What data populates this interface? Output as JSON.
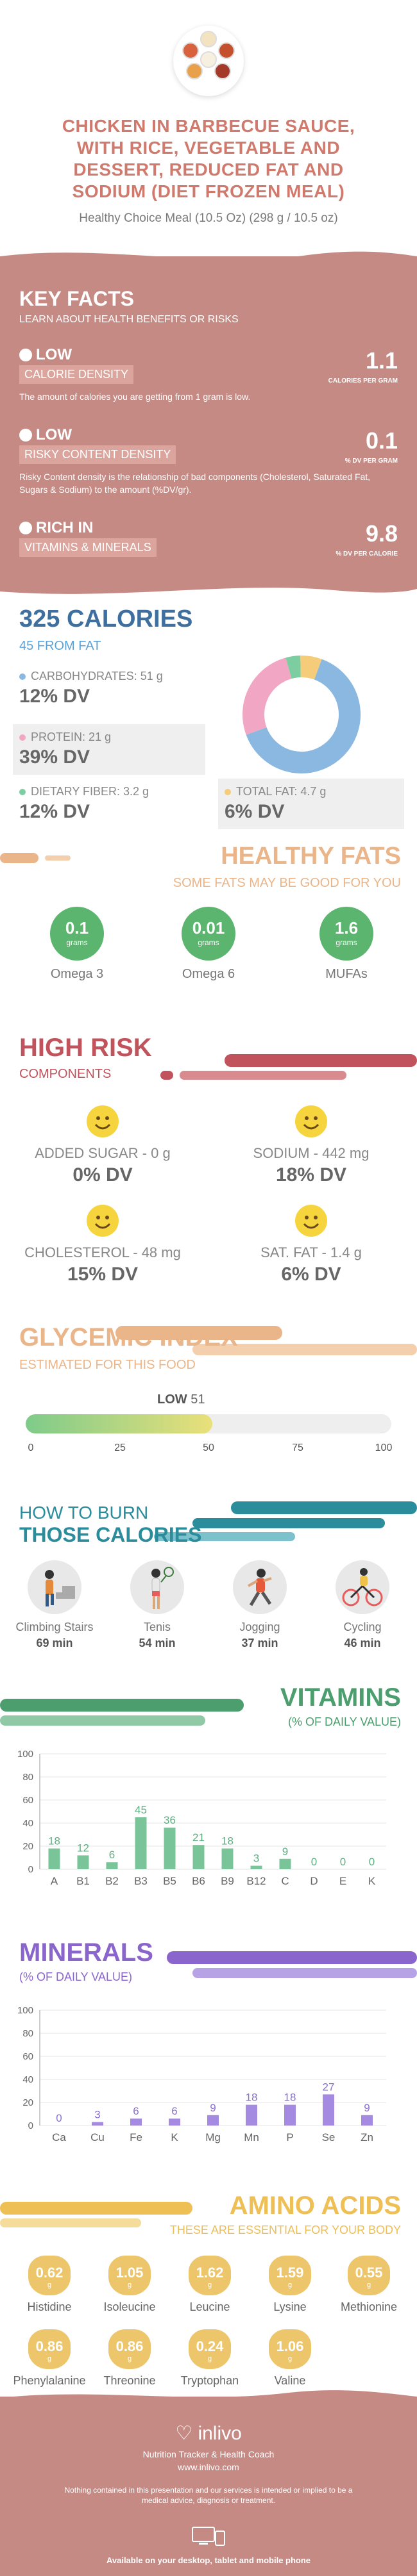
{
  "header": {
    "title": "CHICKEN IN BARBECUE SAUCE, WITH RICE, VEGETABLE AND DESSERT, REDUCED FAT AND SODIUM (DIET FROZEN MEAL)",
    "subtitle": "Healthy Choice Meal (10.5 Oz) (298 g / 10.5 oz)",
    "image_icon": "bowls-of-food-icon"
  },
  "key_facts": {
    "title": "KEY FACTS",
    "subtitle": "LEARN ABOUT HEALTH BENEFITS OR RISKS",
    "items": [
      {
        "level": "LOW",
        "tag": "CALORIE DENSITY",
        "desc": "The amount of calories you are getting from 1 gram is low.",
        "value": "1.1",
        "unit": "CALORIES PER GRAM",
        "icon": "thumbs-down-icon"
      },
      {
        "level": "LOW",
        "tag": "RISKY CONTENT DENSITY",
        "desc": "Risky Content density is the relationship of bad components (Cholesterol, Saturated Fat, Sugars & Sodium) to the amount (%DV/gr).",
        "value": "0.1",
        "unit": "% DV PER GRAM",
        "icon": "warning-icon"
      },
      {
        "level": "RICH IN",
        "tag": "VITAMINS & MINERALS",
        "desc": "",
        "value": "9.8",
        "unit": "% DV PER CALORIE",
        "icon": "leaf-icon"
      }
    ]
  },
  "calories": {
    "title": "325 CALORIES",
    "subtitle": "45 FROM FAT",
    "macros": [
      {
        "label": "CARBOHYDRATES: 51 g",
        "dv": "12% DV",
        "color": "#8ab8e0"
      },
      {
        "label": "PROTEIN: 21 g",
        "dv": "39% DV",
        "color": "#f1a7c3"
      },
      {
        "label": "DIETARY FIBER: 3.2 g",
        "dv": "12% DV",
        "color": "#7ccda0"
      },
      {
        "label": "TOTAL FAT: 4.7 g",
        "dv": "6% DV",
        "color": "#f5cc7a"
      }
    ],
    "donut": [
      {
        "name": "carbohydrates",
        "value": 51,
        "color": "#8ab8e0"
      },
      {
        "name": "protein",
        "value": 21,
        "color": "#f1a7c3"
      },
      {
        "name": "fiber",
        "value": 3.2,
        "color": "#7ccda0"
      },
      {
        "name": "fat",
        "value": 4.7,
        "color": "#f5cc7a"
      }
    ]
  },
  "fats": {
    "title": "HEALTHY FATS",
    "subtitle": "SOME FATS MAY BE GOOD FOR YOU",
    "items": [
      {
        "value": "0.1",
        "unit": "grams",
        "name": "Omega 3"
      },
      {
        "value": "0.01",
        "unit": "grams",
        "name": "Omega 6"
      },
      {
        "value": "1.6",
        "unit": "grams",
        "name": "MUFAs"
      }
    ]
  },
  "risk": {
    "title": "HIGH RISK",
    "subtitle": "COMPONENTS",
    "items": [
      {
        "name": "ADDED SUGAR - 0 g",
        "dv": "0% DV",
        "icon": "smiley-face-icon"
      },
      {
        "name": "SODIUM - 442 mg",
        "dv": "18% DV",
        "icon": "smiley-face-icon"
      },
      {
        "name": "CHOLESTEROL - 48 mg",
        "dv": "15% DV",
        "icon": "smiley-face-icon"
      },
      {
        "name": "SAT. FAT - 1.4 g",
        "dv": "6% DV",
        "icon": "smiley-face-icon"
      }
    ]
  },
  "glycemic": {
    "title": "GLYCEMIC INDEX",
    "subtitle": "ESTIMATED FOR THIS FOOD",
    "level": "LOW",
    "value": "51",
    "fill_fraction": 0.51,
    "ticks": [
      "0",
      "25",
      "50",
      "75",
      "100"
    ]
  },
  "burn": {
    "title_line1": "HOW TO BURN",
    "title_line2": "THOSE CALORIES",
    "items": [
      {
        "name": "Climbing Stairs",
        "min": "69 min",
        "icon": "stairs-climber-icon"
      },
      {
        "name": "Tenis",
        "min": "54 min",
        "icon": "tennis-player-icon"
      },
      {
        "name": "Jogging",
        "min": "37 min",
        "icon": "jogger-icon"
      },
      {
        "name": "Cycling",
        "min": "46 min",
        "icon": "cyclist-icon"
      }
    ]
  },
  "vitamins": {
    "title": "VITAMINS",
    "subtitle": "(% OF DAILY VALUE)",
    "chart_data": {
      "type": "bar",
      "categories": [
        "A",
        "B1",
        "B2",
        "B3",
        "B5",
        "B6",
        "B9",
        "B12",
        "C",
        "D",
        "E",
        "K"
      ],
      "values": [
        18,
        12,
        6,
        45,
        36,
        21,
        18,
        3,
        9,
        0,
        0,
        0
      ],
      "ylim": [
        0,
        100
      ],
      "yticks": [
        "0",
        "20",
        "40",
        "60",
        "80",
        "100"
      ],
      "color": "#7ac49a",
      "label_color": "#5fae82"
    }
  },
  "minerals": {
    "title": "MINERALS",
    "subtitle": "(% OF DAILY VALUE)",
    "chart_data": {
      "type": "bar",
      "categories": [
        "Ca",
        "Cu",
        "Fe",
        "K",
        "Mg",
        "Mn",
        "P",
        "Se",
        "Zn"
      ],
      "values": [
        0,
        3,
        6,
        6,
        9,
        18,
        18,
        27,
        9
      ],
      "ylim": [
        0,
        100
      ],
      "yticks": [
        "0",
        "20",
        "40",
        "60",
        "80",
        "100"
      ],
      "color": "#a48ae0",
      "label_color": "#8a70d0"
    }
  },
  "amino": {
    "title": "AMINO ACIDS",
    "subtitle": "THESE ARE ESSENTIAL FOR YOUR BODY",
    "items": [
      {
        "value": "0.62",
        "unit": "g",
        "name": "Histidine"
      },
      {
        "value": "1.05",
        "unit": "g",
        "name": "Isoleucine"
      },
      {
        "value": "1.62",
        "unit": "g",
        "name": "Leucine"
      },
      {
        "value": "1.59",
        "unit": "g",
        "name": "Lysine"
      },
      {
        "value": "0.55",
        "unit": "g",
        "name": "Methionine"
      },
      {
        "value": "0.86",
        "unit": "g",
        "name": "Phenylalanine"
      },
      {
        "value": "0.86",
        "unit": "g",
        "name": "Threonine"
      },
      {
        "value": "0.24",
        "unit": "g",
        "name": "Tryptophan"
      },
      {
        "value": "1.06",
        "unit": "g",
        "name": "Valine"
      }
    ]
  },
  "footer": {
    "brand": "inlivo",
    "tagline": "Nutrition Tracker & Health Coach",
    "site": "www.inlivo.com",
    "disclaimer": "Nothing contained in this presentation and our services is intended or implied to be a medical advice, diagnosis or treatment.",
    "available": "Available on your desktop, tablet and mobile phone",
    "logo_icon": "heart-logo-icon"
  }
}
